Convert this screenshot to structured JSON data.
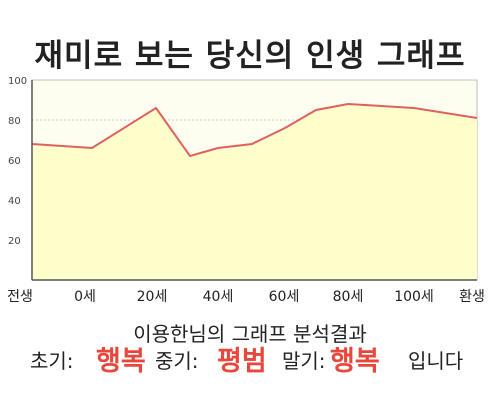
{
  "title": "재미로 보는 당신의 인생 그래프",
  "chart_data": {
    "type": "area",
    "x_labels": [
      "전생",
      "0세",
      "20세",
      "40세",
      "60세",
      "80세",
      "100세",
      "환생"
    ],
    "y_ticks": [
      20,
      40,
      60,
      80,
      100
    ],
    "ylim": [
      0,
      100
    ],
    "grid": true,
    "series": [
      {
        "points": [
          {
            "x": "전생",
            "y": 68
          },
          {
            "x": "0세",
            "y": 66
          },
          {
            "x": "20세",
            "y": 86
          },
          {
            "x": "30세",
            "y": 62
          },
          {
            "x": "40세",
            "y": 66
          },
          {
            "x": "50세",
            "y": 68
          },
          {
            "x": "60세",
            "y": 76
          },
          {
            "x": "70세",
            "y": 85
          },
          {
            "x": "80세",
            "y": 88
          },
          {
            "x": "100세",
            "y": 86
          },
          {
            "x": "환생",
            "y": 81
          }
        ]
      }
    ],
    "colors": {
      "line": "#e06060",
      "fill": "#ffffcc",
      "grid": "#cccccc",
      "axis": "#555555"
    }
  },
  "result": {
    "heading": "이용한님의 그래프 분석결과",
    "early_label": "초기:",
    "early_value": "행복",
    "middle_label": "중기:",
    "middle_value": "평범",
    "late_label": "말기:",
    "late_value": "행복",
    "ending": "입니다"
  }
}
